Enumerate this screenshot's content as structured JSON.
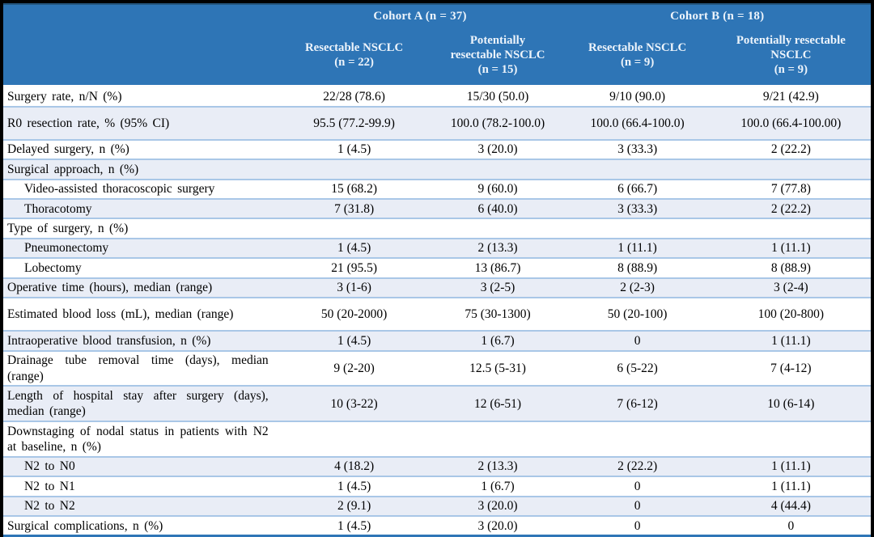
{
  "colors": {
    "frame_bg": "#000000",
    "header_bg": "#2e75b6",
    "header_top_line": "#24567f",
    "header_text": "#edf4fb",
    "body_text": "#000000",
    "row_bg": "#ffffff",
    "row_alt_bg": "#e9edf6",
    "row_border": "#a9c7e7",
    "table_bottom_border": "#2e75b6"
  },
  "table": {
    "col_groups": [
      {
        "label": "Cohort A (n = 37)"
      },
      {
        "label": "Cohort B (n = 18)"
      }
    ],
    "columns": [
      {
        "label": "Resectable NSCLC\n(n = 22)"
      },
      {
        "label": "Potentially\nresectable NSCLC\n(n = 15)"
      },
      {
        "label": "Resectable NSCLC\n(n = 9)"
      },
      {
        "label": "Potentially resectable\nNSCLC\n(n = 9)"
      }
    ],
    "rows": [
      {
        "label": "Surgery rate, n/N (%)",
        "indent": false,
        "tall": false,
        "section": false,
        "values": [
          "22/28 (78.6)",
          "15/30 (50.0)",
          "9/10 (90.0)",
          "9/21 (42.9)"
        ]
      },
      {
        "label": "R0 resection rate, % (95% CI)",
        "indent": false,
        "tall": true,
        "section": false,
        "values": [
          "95.5 (77.2-99.9)",
          "100.0 (78.2-100.0)",
          "100.0 (66.4-100.0)",
          "100.0 (66.4-100.00)"
        ]
      },
      {
        "label": "Delayed surgery, n (%)",
        "indent": false,
        "tall": false,
        "section": false,
        "values": [
          "1 (4.5)",
          "3 (20.0)",
          "3 (33.3)",
          "2 (22.2)"
        ]
      },
      {
        "label": "Surgical approach, n (%)",
        "indent": false,
        "tall": false,
        "section": true,
        "values": [
          "",
          "",
          "",
          ""
        ]
      },
      {
        "label": "Video-assisted thoracoscopic surgery",
        "indent": true,
        "tall": false,
        "section": false,
        "values": [
          "15 (68.2)",
          "9 (60.0)",
          "6 (66.7)",
          "7 (77.8)"
        ]
      },
      {
        "label": "Thoracotomy",
        "indent": true,
        "tall": false,
        "section": false,
        "values": [
          "7 (31.8)",
          "6 (40.0)",
          "3 (33.3)",
          "2 (22.2)"
        ]
      },
      {
        "label": "Type of surgery, n (%)",
        "indent": false,
        "tall": false,
        "section": true,
        "values": [
          "",
          "",
          "",
          ""
        ]
      },
      {
        "label": "Pneumonectomy",
        "indent": true,
        "tall": false,
        "section": false,
        "values": [
          "1 (4.5)",
          "2 (13.3)",
          "1 (11.1)",
          "1 (11.1)"
        ]
      },
      {
        "label": "Lobectomy",
        "indent": true,
        "tall": false,
        "section": false,
        "values": [
          "21 (95.5)",
          "13 (86.7)",
          "8 (88.9)",
          "8 (88.9)"
        ]
      },
      {
        "label": "Operative time (hours), median (range)",
        "indent": false,
        "tall": false,
        "section": false,
        "values": [
          "3 (1-6)",
          "3 (2-5)",
          "2 (2-3)",
          "3 (2-4)"
        ]
      },
      {
        "label": "Estimated blood loss (mL), median (range)",
        "indent": false,
        "tall": true,
        "section": false,
        "values": [
          "50 (20-2000)",
          "75 (30-1300)",
          "50 (20-100)",
          "100 (20-800)"
        ]
      },
      {
        "label": "Intraoperative blood transfusion, n (%)",
        "indent": false,
        "tall": false,
        "section": false,
        "values": [
          "1 (4.5)",
          "1 (6.7)",
          "0",
          "1 (11.1)"
        ]
      },
      {
        "label": "Drainage tube removal time (days), median (range)",
        "indent": false,
        "tall": false,
        "section": false,
        "values": [
          "9 (2-20)",
          "12.5 (5-31)",
          "6 (5-22)",
          "7 (4-12)"
        ]
      },
      {
        "label": "Length of hospital stay after surgery (days), median (range)",
        "indent": false,
        "tall": false,
        "section": false,
        "values": [
          "10 (3-22)",
          "12 (6-51)",
          "7 (6-12)",
          "10 (6-14)"
        ]
      },
      {
        "label": "Downstaging of nodal status in patients with N2 at baseline, n (%)",
        "indent": false,
        "tall": false,
        "section": true,
        "values": [
          "",
          "",
          "",
          ""
        ]
      },
      {
        "label": "N2 to N0",
        "indent": true,
        "tall": false,
        "section": false,
        "values": [
          "4 (18.2)",
          "2 (13.3)",
          "2 (22.2)",
          "1 (11.1)"
        ]
      },
      {
        "label": "N2 to N1",
        "indent": true,
        "tall": false,
        "section": false,
        "values": [
          "1 (4.5)",
          "1 (6.7)",
          "0",
          "1 (11.1)"
        ]
      },
      {
        "label": "N2 to N2",
        "indent": true,
        "tall": false,
        "section": false,
        "values": [
          "2 (9.1)",
          "3 (20.0)",
          "0",
          "4 (44.4)"
        ]
      },
      {
        "label": "Surgical complications, n (%)",
        "indent": false,
        "tall": false,
        "section": false,
        "values": [
          "1 (4.5)",
          "3 (20.0)",
          "0",
          "0"
        ]
      }
    ]
  }
}
